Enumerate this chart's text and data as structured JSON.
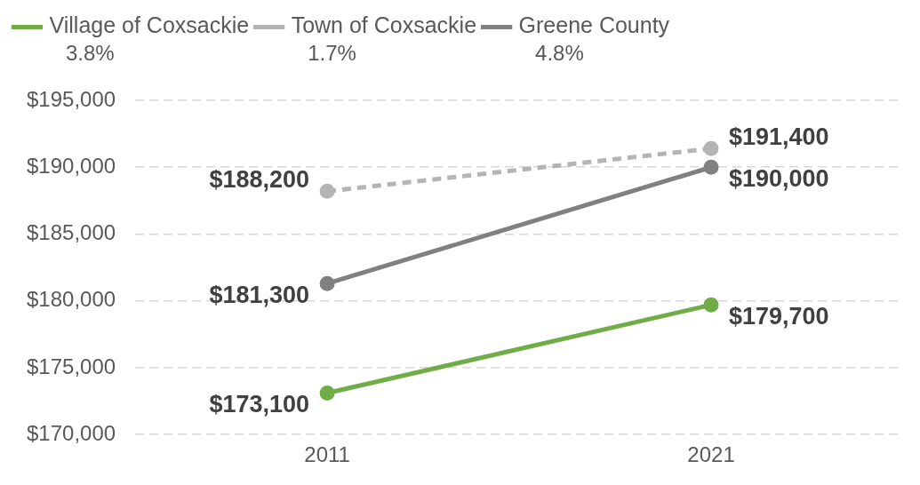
{
  "chart_data": {
    "type": "line",
    "categories": [
      "2011",
      "2021"
    ],
    "series": [
      {
        "name": "Village of Coxsackie",
        "color": "#70ad47",
        "values": [
          173100,
          179700
        ],
        "value_labels": [
          "$173,100",
          "$179,700"
        ],
        "line_style": "solid"
      },
      {
        "name": "Town of Coxsackie",
        "color": "#b4b4b4",
        "values": [
          188200,
          191400
        ],
        "value_labels": [
          "$188,200",
          "$191,400"
        ],
        "line_style": "dashed"
      },
      {
        "name": "Greene County",
        "color": "#808080",
        "values": [
          181300,
          190000
        ],
        "value_labels": [
          "$181,300",
          "$190,000"
        ],
        "line_style": "solid"
      }
    ],
    "annotations": [
      "3.8%",
      "1.7%",
      "4.8%"
    ],
    "ylim": [
      170000,
      195000
    ],
    "yticks": [
      {
        "value": 170000,
        "label": "$170,000"
      },
      {
        "value": 175000,
        "label": "$175,000"
      },
      {
        "value": 180000,
        "label": "$180,000"
      },
      {
        "value": 185000,
        "label": "$185,000"
      },
      {
        "value": 190000,
        "label": "$190,000"
      },
      {
        "value": 195000,
        "label": "$195,000"
      }
    ],
    "grid": "y",
    "legend": "top",
    "marker": "circle"
  }
}
